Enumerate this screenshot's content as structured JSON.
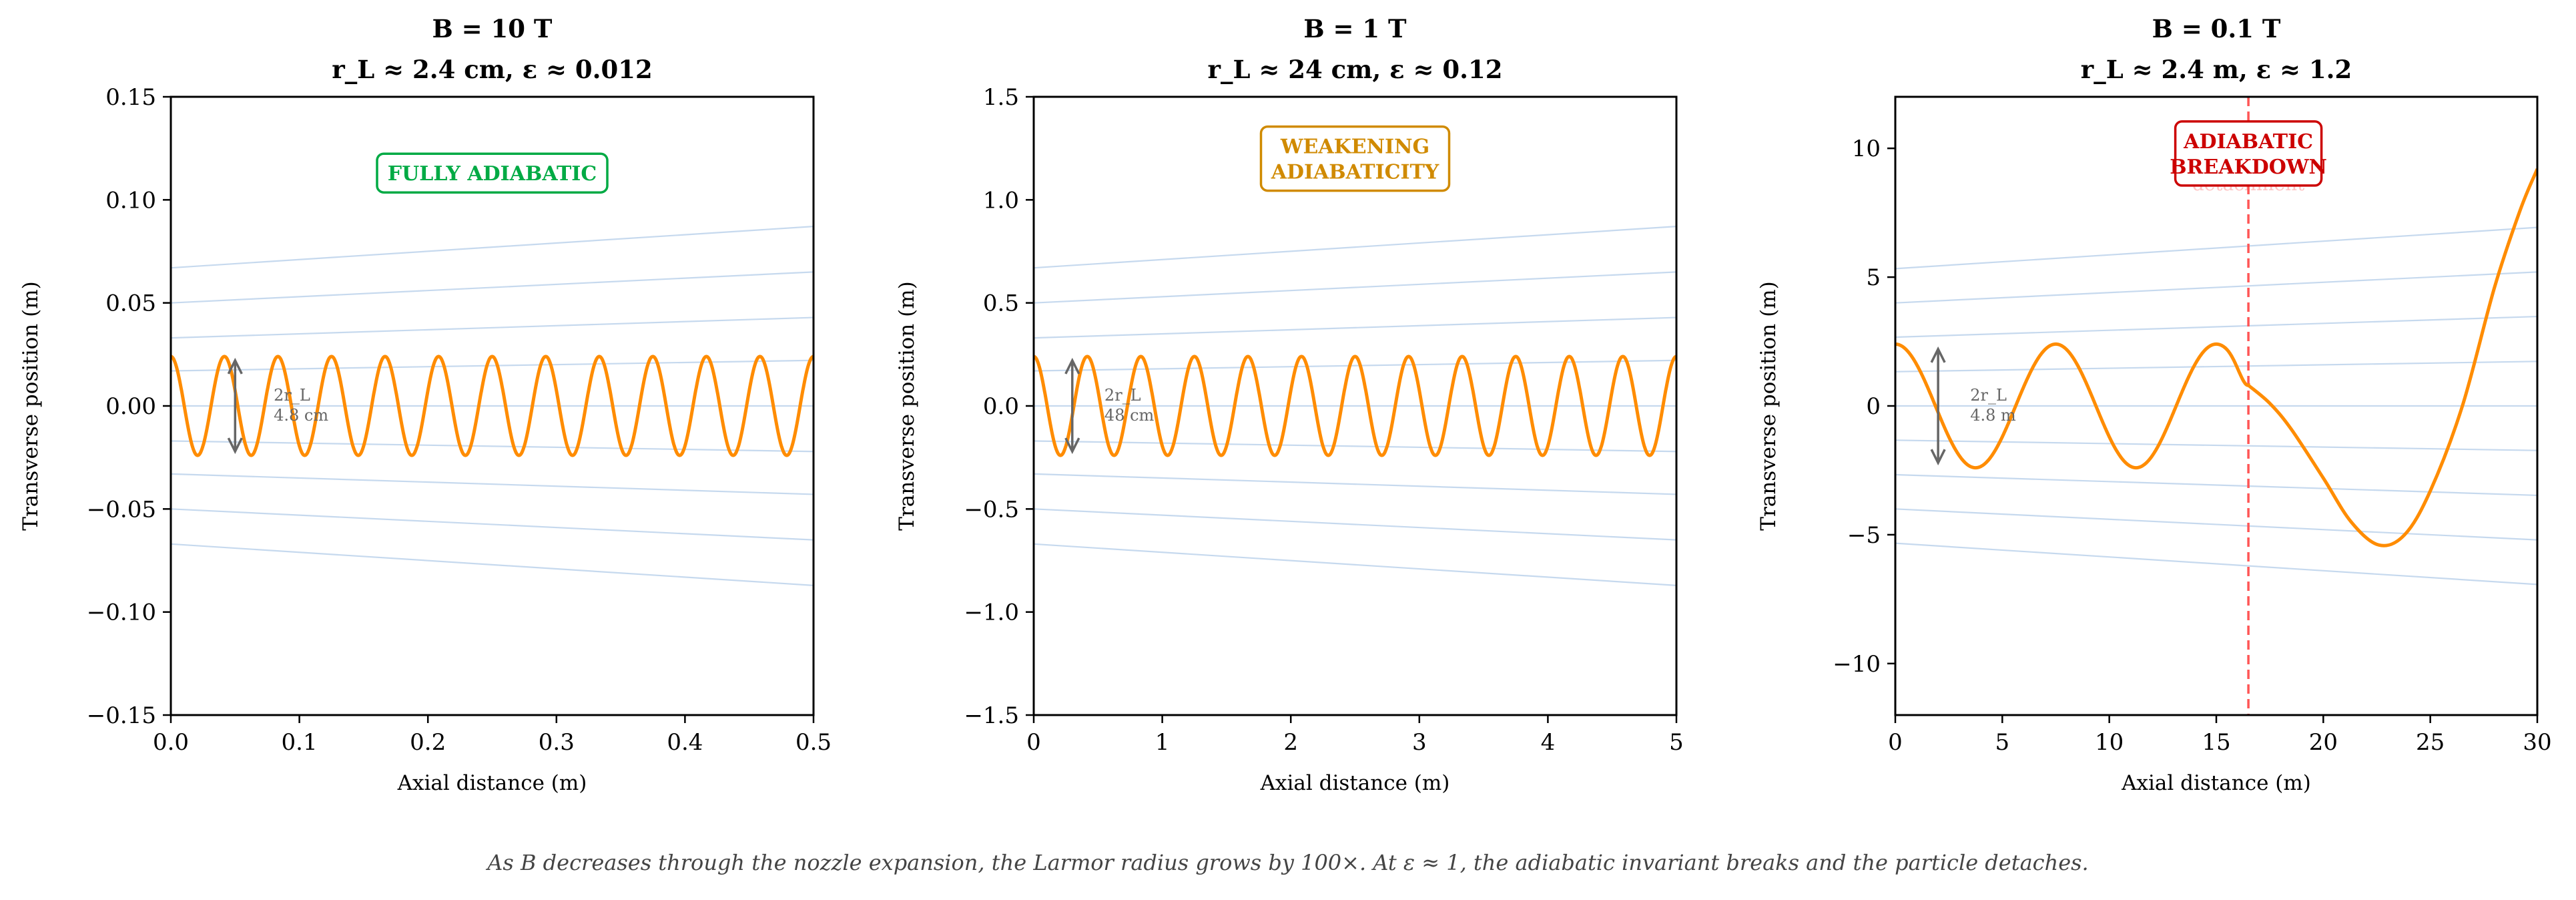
{
  "caption": "As B decreases through the nozzle expansion, the Larmor radius grows by 100×.  At ε ≈ 1, the adiabatic invariant breaks and the particle detaches.",
  "colors": {
    "trajectory": "#ff8c00",
    "field_lines": "#c6d9ee",
    "arrow": "#666666"
  },
  "chart_data": [
    {
      "type": "line",
      "title": "B = 10 T",
      "subtitle": "r_L ≈ 2.4 cm, ε ≈ 0.012",
      "xlabel": "Axial distance (m)",
      "ylabel": "Transverse position (m)",
      "xlim": [
        0,
        0.5
      ],
      "ylim": [
        -0.15,
        0.15
      ],
      "xticks": [
        0,
        0.1,
        0.2,
        0.3,
        0.4,
        0.5
      ],
      "xtick_labels": [
        "0.0",
        "0.1",
        "0.2",
        "0.3",
        "0.4",
        "0.5"
      ],
      "yticks": [
        0.15,
        0.1,
        0.05,
        0,
        -0.05,
        -0.1,
        -0.15
      ],
      "ytick_labels": [
        "0.15",
        "0.10",
        "0.05",
        "0.00",
        "−0.05",
        "−0.10",
        "−0.15"
      ],
      "field_lines": {
        "start": [
          0.067,
          0.05,
          0.033,
          0.017,
          0,
          -0.017,
          -0.033,
          -0.05,
          -0.067
        ],
        "expansion": 1.3
      },
      "orbit": {
        "r_L": 0.024,
        "cycles": 12
      },
      "arrow": {
        "x": 0.05,
        "label1": "2r_L",
        "label2": "4.8 cm",
        "label_x": 0.08
      },
      "badge": {
        "lines": [
          "FULLY ADIABATIC"
        ],
        "color": "#00aa44",
        "x": 0.25,
        "y": 0.113
      }
    },
    {
      "type": "line",
      "title": "B = 1 T",
      "subtitle": "r_L ≈ 24 cm, ε ≈ 0.12",
      "xlabel": "Axial distance (m)",
      "ylabel": "Transverse position (m)",
      "xlim": [
        0,
        5
      ],
      "ylim": [
        -1.5,
        1.5
      ],
      "xticks": [
        0,
        1,
        2,
        3,
        4,
        5
      ],
      "xtick_labels": [
        "0",
        "1",
        "2",
        "3",
        "4",
        "5"
      ],
      "yticks": [
        1.5,
        1.0,
        0.5,
        0,
        -0.5,
        -1.0,
        -1.5
      ],
      "ytick_labels": [
        "1.5",
        "1.0",
        "0.5",
        "0.0",
        "−0.5",
        "−1.0",
        "−1.5"
      ],
      "field_lines": {
        "start": [
          0.67,
          0.5,
          0.33,
          0.17,
          0,
          -0.17,
          -0.33,
          -0.5,
          -0.67
        ],
        "expansion": 1.3
      },
      "orbit": {
        "r_L": 0.24,
        "cycles": 12
      },
      "arrow": {
        "x": 0.3,
        "label1": "2r_L",
        "label2": "48 cm",
        "label_x": 0.55
      },
      "badge": {
        "lines": [
          "WEAKENING",
          "ADIABATICITY"
        ],
        "color": "#d08a00",
        "x": 2.5,
        "y": 1.2
      }
    },
    {
      "type": "line",
      "title": "B = 0.1 T",
      "subtitle": "r_L ≈ 2.4 m, ε ≈ 1.2",
      "xlabel": "Axial distance (m)",
      "ylabel": "Transverse position (m)",
      "xlim": [
        0,
        30
      ],
      "ylim": [
        -12,
        12
      ],
      "xticks": [
        0,
        5,
        10,
        15,
        20,
        25,
        30
      ],
      "xtick_labels": [
        "0",
        "5",
        "10",
        "15",
        "20",
        "25",
        "30"
      ],
      "yticks": [
        10,
        5,
        0,
        -5,
        -10
      ],
      "ytick_labels": [
        "10",
        "5",
        "0",
        "−5",
        "−10"
      ],
      "field_lines": {
        "start": [
          5.33,
          4,
          2.67,
          1.33,
          0,
          -1.33,
          -2.67,
          -4,
          -5.33
        ],
        "expansion": 1.3
      },
      "orbit": {
        "r_L": 2.4,
        "wavelength": 7.5,
        "detach_x": 16.5,
        "after_detach": [
          [
            16.5,
            0.8
          ],
          [
            17.5,
            0.1
          ],
          [
            18.5,
            -0.9
          ],
          [
            20,
            -2.8
          ],
          [
            21.3,
            -4.5
          ],
          [
            22.6,
            -5.4
          ],
          [
            23.8,
            -5.0
          ],
          [
            25,
            -3.3
          ],
          [
            26.5,
            0
          ],
          [
            28,
            4.6
          ],
          [
            29.2,
            7.6
          ],
          [
            30,
            9.2
          ]
        ]
      },
      "arrow": {
        "x": 2,
        "label1": "2r_L",
        "label2": "4.8 m",
        "label_x": 3.5
      },
      "detach_line": {
        "x": 16.5,
        "color": "#ff5555",
        "label": "detachment"
      },
      "badge": {
        "lines": [
          "ADIABATIC",
          "BREAKDOWN"
        ],
        "color": "#cc0000",
        "x": 16.5,
        "y": 9.8
      }
    }
  ]
}
